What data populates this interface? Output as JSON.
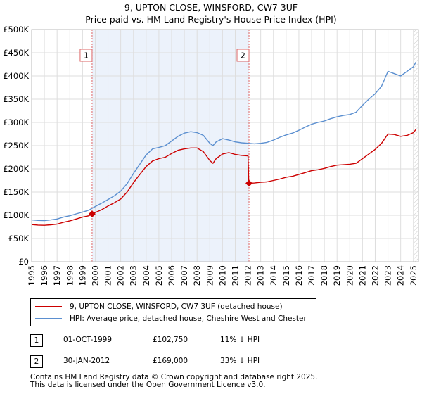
{
  "chart_data": {
    "type": "line",
    "title": "9, UPTON CLOSE, WINSFORD, CW7 3UF",
    "subtitle": "Price paid vs. HM Land Registry's House Price Index (HPI)",
    "xlim": [
      1995,
      2025.4
    ],
    "ylim": [
      0,
      500000
    ],
    "grid": true,
    "x_ticks": [
      "1995",
      "1996",
      "1997",
      "1998",
      "1999",
      "2000",
      "2001",
      "2002",
      "2003",
      "2004",
      "2005",
      "2006",
      "2007",
      "2008",
      "2009",
      "2010",
      "2011",
      "2012",
      "2013",
      "2014",
      "2015",
      "2016",
      "2017",
      "2018",
      "2019",
      "2020",
      "2021",
      "2022",
      "2023",
      "2024",
      "2025"
    ],
    "y_ticks": [
      {
        "value": 0,
        "label": "£0"
      },
      {
        "value": 50000,
        "label": "£50K"
      },
      {
        "value": 100000,
        "label": "£100K"
      },
      {
        "value": 150000,
        "label": "£150K"
      },
      {
        "value": 200000,
        "label": "£200K"
      },
      {
        "value": 250000,
        "label": "£250K"
      },
      {
        "value": 300000,
        "label": "£300K"
      },
      {
        "value": 350000,
        "label": "£350K"
      },
      {
        "value": 400000,
        "label": "£400K"
      },
      {
        "value": 450000,
        "label": "£450K"
      },
      {
        "value": 500000,
        "label": "£500K"
      }
    ],
    "series": [
      {
        "name": "9, UPTON CLOSE, WINSFORD, CW7 3UF (detached house)",
        "color": "#cc0000",
        "points": [
          [
            1995.0,
            80000
          ],
          [
            1995.5,
            79000
          ],
          [
            1996.0,
            78500
          ],
          [
            1996.5,
            79500
          ],
          [
            1997.0,
            81000
          ],
          [
            1997.5,
            85000
          ],
          [
            1998.0,
            88000
          ],
          [
            1998.5,
            92000
          ],
          [
            1999.0,
            96000
          ],
          [
            1999.5,
            99000
          ],
          [
            1999.75,
            102750
          ],
          [
            2000.0,
            106000
          ],
          [
            2000.5,
            112000
          ],
          [
            2001.0,
            120000
          ],
          [
            2001.5,
            127000
          ],
          [
            2002.0,
            135000
          ],
          [
            2002.5,
            150000
          ],
          [
            2003.0,
            170000
          ],
          [
            2003.5,
            188000
          ],
          [
            2004.0,
            205000
          ],
          [
            2004.5,
            217000
          ],
          [
            2005.0,
            222000
          ],
          [
            2005.5,
            225000
          ],
          [
            2006.0,
            233000
          ],
          [
            2006.5,
            240000
          ],
          [
            2007.0,
            243000
          ],
          [
            2007.5,
            245000
          ],
          [
            2008.0,
            245000
          ],
          [
            2008.5,
            237000
          ],
          [
            2009.0,
            218000
          ],
          [
            2009.25,
            212000
          ],
          [
            2009.5,
            222000
          ],
          [
            2010.0,
            232000
          ],
          [
            2010.5,
            235000
          ],
          [
            2011.0,
            231000
          ],
          [
            2011.5,
            229000
          ],
          [
            2012.0,
            228000
          ],
          [
            2012.07,
            169000
          ],
          [
            2012.5,
            169500
          ],
          [
            2013.0,
            171000
          ],
          [
            2013.5,
            172000
          ],
          [
            2014.0,
            175000
          ],
          [
            2014.5,
            178000
          ],
          [
            2015.0,
            182000
          ],
          [
            2015.5,
            184000
          ],
          [
            2016.0,
            188000
          ],
          [
            2016.5,
            192000
          ],
          [
            2017.0,
            196000
          ],
          [
            2017.5,
            198000
          ],
          [
            2018.0,
            201000
          ],
          [
            2018.5,
            205000
          ],
          [
            2019.0,
            208000
          ],
          [
            2019.5,
            209000
          ],
          [
            2020.0,
            210000
          ],
          [
            2020.5,
            212000
          ],
          [
            2021.0,
            222000
          ],
          [
            2021.5,
            232000
          ],
          [
            2022.0,
            242000
          ],
          [
            2022.5,
            255000
          ],
          [
            2023.0,
            275000
          ],
          [
            2023.5,
            274000
          ],
          [
            2024.0,
            270000
          ],
          [
            2024.5,
            272000
          ],
          [
            2025.0,
            278000
          ],
          [
            2025.2,
            285000
          ]
        ]
      },
      {
        "name": "HPI: Average price, detached house, Cheshire West and Chester",
        "color": "#5b8fd0",
        "points": [
          [
            1995.0,
            90000
          ],
          [
            1995.5,
            89000
          ],
          [
            1996.0,
            88500
          ],
          [
            1996.5,
            90000
          ],
          [
            1997.0,
            92000
          ],
          [
            1997.5,
            96000
          ],
          [
            1998.0,
            99000
          ],
          [
            1998.5,
            103000
          ],
          [
            1999.0,
            107000
          ],
          [
            1999.5,
            111000
          ],
          [
            1999.75,
            115000
          ],
          [
            2000.0,
            119000
          ],
          [
            2000.5,
            126000
          ],
          [
            2001.0,
            134000
          ],
          [
            2001.5,
            142000
          ],
          [
            2002.0,
            152000
          ],
          [
            2002.5,
            168000
          ],
          [
            2003.0,
            190000
          ],
          [
            2003.5,
            210000
          ],
          [
            2004.0,
            230000
          ],
          [
            2004.5,
            243000
          ],
          [
            2005.0,
            246000
          ],
          [
            2005.5,
            250000
          ],
          [
            2006.0,
            260000
          ],
          [
            2006.5,
            270000
          ],
          [
            2007.0,
            277000
          ],
          [
            2007.5,
            280000
          ],
          [
            2008.0,
            278000
          ],
          [
            2008.5,
            272000
          ],
          [
            2009.0,
            255000
          ],
          [
            2009.25,
            250000
          ],
          [
            2009.5,
            258000
          ],
          [
            2010.0,
            265000
          ],
          [
            2010.5,
            262000
          ],
          [
            2011.0,
            258000
          ],
          [
            2011.5,
            256000
          ],
          [
            2012.0,
            255000
          ],
          [
            2012.5,
            254000
          ],
          [
            2013.0,
            255000
          ],
          [
            2013.5,
            257000
          ],
          [
            2014.0,
            262000
          ],
          [
            2014.5,
            268000
          ],
          [
            2015.0,
            273000
          ],
          [
            2015.5,
            277000
          ],
          [
            2016.0,
            283000
          ],
          [
            2016.5,
            290000
          ],
          [
            2017.0,
            296000
          ],
          [
            2017.5,
            300000
          ],
          [
            2018.0,
            303000
          ],
          [
            2018.5,
            308000
          ],
          [
            2019.0,
            312000
          ],
          [
            2019.5,
            315000
          ],
          [
            2020.0,
            317000
          ],
          [
            2020.5,
            322000
          ],
          [
            2021.0,
            337000
          ],
          [
            2021.5,
            350000
          ],
          [
            2022.0,
            362000
          ],
          [
            2022.5,
            378000
          ],
          [
            2023.0,
            410000
          ],
          [
            2023.5,
            405000
          ],
          [
            2024.0,
            400000
          ],
          [
            2024.5,
            410000
          ],
          [
            2025.0,
            420000
          ],
          [
            2025.2,
            430000
          ]
        ]
      }
    ],
    "markers": [
      {
        "label": "1",
        "x": 1999.75,
        "y": 102750
      },
      {
        "label": "2",
        "x": 2012.08,
        "y": 169000
      }
    ],
    "events": [
      {
        "label": "1",
        "x": 1999.75
      },
      {
        "label": "2",
        "x": 2012.08
      }
    ],
    "hatch_after": 2025.0
  },
  "legend": {
    "items": [
      {
        "label": "9, UPTON CLOSE, WINSFORD, CW7 3UF (detached house)",
        "color": "#cc0000"
      },
      {
        "label": "HPI: Average price, detached house, Cheshire West and Chester",
        "color": "#5b8fd0"
      }
    ]
  },
  "transactions": [
    {
      "num": "1",
      "date": "01-OCT-1999",
      "price": "£102,750",
      "hpi": "11% ↓ HPI"
    },
    {
      "num": "2",
      "date": "30-JAN-2012",
      "price": "£169,000",
      "hpi": "33% ↓ HPI"
    }
  ],
  "footer": {
    "line1": "Contains HM Land Registry data © Crown copyright and database right 2025.",
    "line2": "This data is licensed under the Open Government Licence v3.0."
  }
}
